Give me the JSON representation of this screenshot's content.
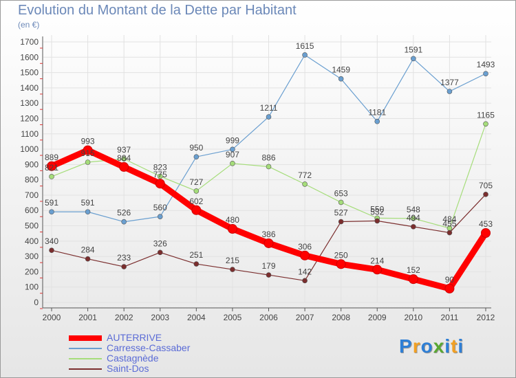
{
  "title": "Evolution du Montant de la Dette par Habitant",
  "subtitle": "(en €)",
  "logo": {
    "text": "Proxiti",
    "colors": [
      "#2e7fd6",
      "#f2a023",
      "#2e7fd6",
      "#5aa832",
      "#2e7fd6",
      "#f2a023",
      "#2e7fd6"
    ]
  },
  "chart_data": {
    "type": "line",
    "x": [
      "2000",
      "2001",
      "2002",
      "2003",
      "2004",
      "2005",
      "2006",
      "2007",
      "2008",
      "2009",
      "2010",
      "2011",
      "2012"
    ],
    "ylim": [
      0,
      1700
    ],
    "yticks": [
      "0",
      "100",
      "200",
      "300",
      "400",
      "500",
      "600",
      "700",
      "800",
      "900",
      "1000",
      "1100",
      "1200",
      "1300",
      "1400",
      "1500",
      "1600",
      "1700"
    ],
    "grid": true,
    "legend_position": "bottom-left",
    "series": [
      {
        "name": "AUTERRIVE",
        "color": "#ff0000",
        "width": 9,
        "values": [
          889,
          993,
          884,
          775,
          602,
          480,
          386,
          306,
          250,
          214,
          152,
          90,
          453
        ],
        "labels": [
          "889",
          "993",
          "884",
          "775",
          "602",
          "480",
          "386",
          "306",
          "250",
          "214",
          "152",
          "90",
          "453"
        ]
      },
      {
        "name": "Carresse-Cassaber",
        "color": "#6a9fd0",
        "width": 1.2,
        "values": [
          591,
          591,
          526,
          560,
          950,
          999,
          1211,
          1615,
          1459,
          1181,
          1591,
          1377,
          1493
        ],
        "labels": [
          "591",
          "591",
          "526",
          "560",
          "950",
          "999",
          "1211",
          "1615",
          "1459",
          "1181",
          "1591",
          "1377",
          "1493"
        ]
      },
      {
        "name": "Castagnède",
        "color": "#a5dd7a",
        "width": 1.2,
        "values": [
          821,
          915,
          937,
          823,
          727,
          907,
          886,
          772,
          653,
          550,
          548,
          484,
          1165
        ],
        "labels": [
          "821",
          "915",
          "937",
          "823",
          "727",
          "907",
          "886",
          "772",
          "653",
          "550",
          "548",
          "484",
          "1165"
        ]
      },
      {
        "name": "Saint-Dos",
        "color": "#7b2e2e",
        "width": 1.2,
        "values": [
          340,
          284,
          233,
          326,
          251,
          215,
          179,
          142,
          527,
          532,
          494,
          455,
          705
        ],
        "labels": [
          "340",
          "284",
          "233",
          "326",
          "251",
          "215",
          "179",
          "142",
          "527",
          "532",
          "494",
          "455",
          "705"
        ]
      }
    ]
  }
}
